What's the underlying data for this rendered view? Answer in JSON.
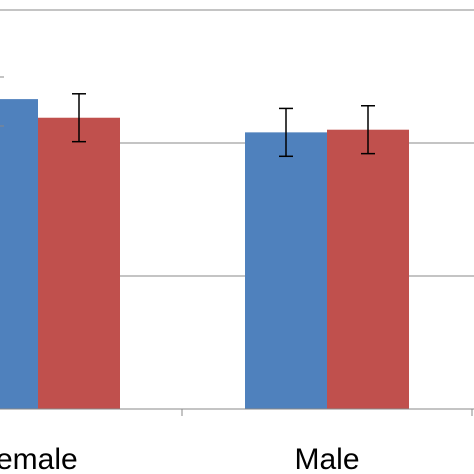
{
  "chart_data": {
    "type": "bar",
    "categories": [
      "Female",
      "Male"
    ],
    "visible_tick_labels": [
      "emale",
      "Male"
    ],
    "series": [
      {
        "color": "#4f81bd",
        "values": [
          2.33,
          2.08
        ],
        "error": [
          null,
          0.18
        ]
      },
      {
        "color": "#c0504d",
        "values": [
          2.19,
          2.1
        ],
        "error": [
          0.18,
          0.18
        ]
      }
    ],
    "ylim": [
      0,
      3.08
    ],
    "gridlines": [
      1,
      2,
      3
    ],
    "grid": true,
    "legend": "none"
  }
}
